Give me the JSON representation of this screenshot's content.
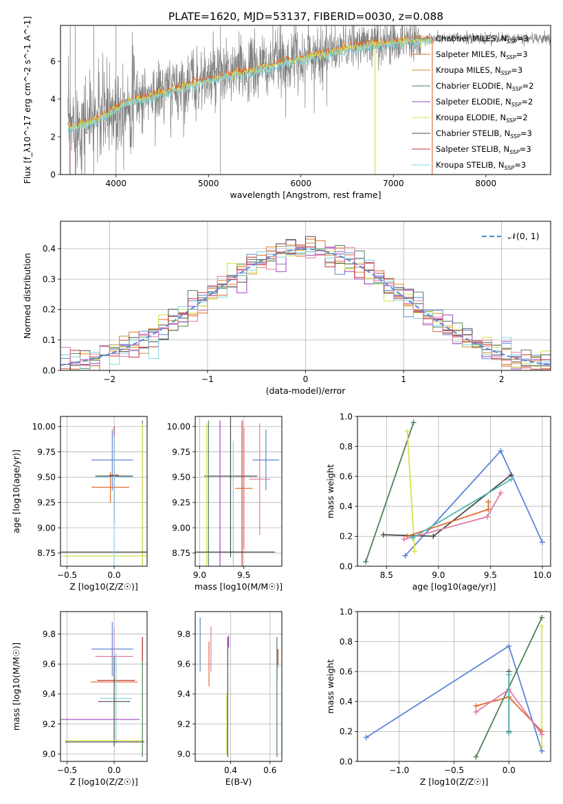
{
  "colors": {
    "chabrier_miles": "#5b84d6",
    "salpeter_miles": "#e06a2b",
    "kroupa_miles": "#d98a2a",
    "chabrier_elodie": "#4f7f54",
    "salpeter_elodie": "#a040c0",
    "kroupa_elodie": "#d8e04a",
    "chabrier_stelib": "#4a4a4a",
    "salpeter_stelib": "#c03030",
    "kroupa_stelib": "#7fd3e0",
    "data": "#808080",
    "normal": "#5b8fd6",
    "pink": "#e07aa8",
    "teal": "#4cb8b0"
  },
  "chart_data": [
    {
      "id": "spectrum",
      "type": "line",
      "title": "PLATE=1620, MJD=53137, FIBERID=0030, z=0.088",
      "xlabel": "wavelength [Angstrom, rest frame]",
      "ylabel": "Flux [f_λ10^-17 erg cm^-2 s^-1 A^-1]",
      "xlim": [
        3400,
        8700
      ],
      "ylim": [
        0,
        7.9
      ],
      "xticks": [
        "4000",
        "5000",
        "6000",
        "7000",
        "8000"
      ],
      "yticks": [
        "0",
        "2",
        "4",
        "6"
      ],
      "grid": false,
      "legend_position": "right",
      "legend": [
        {
          "name": "Chabrier MILES, N_SSP=3",
          "color_key": "chabrier_miles"
        },
        {
          "name": "Salpeter MILES, N_SSP=3",
          "color_key": "salpeter_miles"
        },
        {
          "name": "Kroupa MILES, N_SSP=3",
          "color_key": "kroupa_miles"
        },
        {
          "name": "Chabrier ELODIE, N_SSP=2",
          "color_key": "chabrier_elodie"
        },
        {
          "name": "Salpeter ELODIE, N_SSP=2",
          "color_key": "salpeter_elodie"
        },
        {
          "name": "Kroupa ELODIE, N_SSP=2",
          "color_key": "kroupa_elodie"
        },
        {
          "name": "Chabrier STELIB, N_SSP=3",
          "color_key": "chabrier_stelib"
        },
        {
          "name": "Salpeter STELIB, N_SSP=3",
          "color_key": "salpeter_stelib"
        },
        {
          "name": "Kroupa STELIB, N_SSP=3",
          "color_key": "kroupa_stelib"
        }
      ],
      "continuum": {
        "x": [
          3500,
          3700,
          3900,
          4100,
          4300,
          4500,
          4700,
          4900,
          5100,
          5300,
          5500,
          5700,
          5900,
          6100,
          6300,
          6500,
          6700,
          6900,
          7100,
          7300,
          7420
        ],
        "y": [
          2.6,
          2.8,
          3.3,
          3.9,
          4.1,
          4.4,
          4.7,
          5.0,
          5.2,
          5.45,
          5.6,
          5.85,
          6.1,
          6.35,
          6.5,
          6.8,
          6.95,
          7.0,
          7.15,
          7.2,
          7.2
        ]
      },
      "model_end_x": 7420,
      "data_extent_x": [
        3480,
        8700
      ]
    },
    {
      "id": "residuals",
      "type": "histogram",
      "xlabel": "(data-model)/error",
      "ylabel": "Normed distribution",
      "xlim": [
        -2.5,
        2.5
      ],
      "ylim": [
        0,
        0.49
      ],
      "xticks": [
        "−2",
        "−1",
        "0",
        "1",
        "2"
      ],
      "yticks": [
        "0.0",
        "0.1",
        "0.2",
        "0.3",
        "0.4"
      ],
      "grid": true,
      "legend_position": "top-right",
      "legend": [
        {
          "name": "𝒩(0, 1)",
          "color_key": "normal"
        }
      ],
      "bin_width": 0.1
    },
    {
      "id": "age-vs-z",
      "type": "errorbar",
      "xlabel": "Z [log10(Z/Z☉)]",
      "ylabel": "age [log10(age/yr)]",
      "xlim": [
        -0.57,
        0.35
      ],
      "ylim": [
        8.62,
        10.1
      ],
      "xticks": [
        "−0.5",
        "0.0"
      ],
      "yticks": [
        "8.75",
        "9.00",
        "9.25",
        "9.50",
        "9.75",
        "10.00"
      ],
      "grid": true,
      "series": [
        {
          "color_key": "chabrier_miles",
          "x": -0.02,
          "xerr": 0.22,
          "y": 9.67,
          "yerr": 0.3
        },
        {
          "color_key": "salpeter_miles",
          "x": -0.04,
          "xerr": 0.2,
          "y": 9.4,
          "yerr": 0.15
        },
        {
          "color_key": "chabrier_stelib",
          "x": 0.0,
          "xerr": 0.2,
          "y": 9.51,
          "yerr": 0.35
        },
        {
          "color_key": "salpeter_stelib",
          "x": 0.0,
          "xerr": 0.05,
          "y": 9.52,
          "yerr": 0.48
        },
        {
          "color_key": "kroupa_stelib",
          "x": 0.0,
          "xerr": 0.2,
          "y": 9.5,
          "yerr": 0.4
        },
        {
          "color_key": "chabrier_elodie",
          "x": 0.3,
          "xerr": 0.02,
          "y": 8.76,
          "yerr": 1.3
        },
        {
          "color_key": "kroupa_elodie",
          "x": 0.3,
          "xerr": 0.01,
          "y": 8.73,
          "yerr": 1.3
        },
        {
          "color_key": "chabrier_stelib",
          "x": -0.1,
          "xerr": 0.47,
          "y": 8.76,
          "yerr": 0.0
        },
        {
          "color_key": "kroupa_elodie",
          "x": -0.08,
          "xerr": 0.47,
          "y": 8.72,
          "yerr": 0.0
        },
        {
          "color_key": "kroupa_stelib",
          "x": 0.0,
          "xerr": 0.0,
          "y": 8.76,
          "yerr": 0.6
        }
      ]
    },
    {
      "id": "age-vs-mass",
      "type": "errorbar",
      "xlabel": "mass [log10(M/M☉)]",
      "ylabel": "",
      "xlim": [
        8.95,
        9.93
      ],
      "ylim": [
        8.62,
        10.1
      ],
      "xticks": [
        "9.0",
        "9.5"
      ],
      "yticks": [
        "8.75",
        "9.00",
        "9.25",
        "9.50",
        "9.75",
        "10.00"
      ],
      "grid": true,
      "series": [
        {
          "color_key": "chabrier_miles",
          "x": 9.75,
          "xerr": 0.15,
          "y": 9.67,
          "yerr": 0.3
        },
        {
          "color_key": "pink",
          "x": 9.68,
          "xerr": 0.12,
          "y": 9.48,
          "yerr": 0.55
        },
        {
          "color_key": "salpeter_miles",
          "x": 9.5,
          "xerr": 0.1,
          "y": 9.39,
          "yerr": 0.6
        },
        {
          "color_key": "chabrier_stelib",
          "x": 9.35,
          "xerr": 0.3,
          "y": 9.51,
          "yerr": 0.8
        },
        {
          "color_key": "kroupa_stelib",
          "x": 9.38,
          "xerr": 0.03,
          "y": 8.76,
          "yerr": 1.1
        },
        {
          "color_key": "chabrier_elodie",
          "x": 9.1,
          "xerr": 0.0,
          "y": 8.76,
          "yerr": 1.3
        },
        {
          "color_key": "kroupa_elodie",
          "x": 9.08,
          "xerr": 0.0,
          "y": 8.73,
          "yerr": 1.3
        },
        {
          "color_key": "salpeter_elodie",
          "x": 9.23,
          "xerr": 0.0,
          "y": 8.76,
          "yerr": 1.3
        },
        {
          "color_key": "salpeter_stelib",
          "x": 9.48,
          "xerr": 0.0,
          "y": 8.76,
          "yerr": 1.3
        },
        {
          "color_key": "chabrier_stelib",
          "x": 9.4,
          "xerr": 0.45,
          "y": 8.76,
          "yerr": 0.0
        }
      ]
    },
    {
      "id": "weight-vs-age",
      "type": "line",
      "xlabel": "age [log10(age/yr)]",
      "ylabel": "mass weight",
      "xlim": [
        8.22,
        10.08
      ],
      "ylim": [
        0.0,
        1.0
      ],
      "xticks": [
        "8.5",
        "9.0",
        "9.5",
        "10.0"
      ],
      "yticks": [
        "0.0",
        "0.2",
        "0.4",
        "0.6",
        "0.8",
        "1.0"
      ],
      "grid": true,
      "series": [
        {
          "color_key": "chabrier_miles",
          "x": [
            8.68,
            9.6,
            10.0
          ],
          "y": [
            0.07,
            0.77,
            0.16
          ]
        },
        {
          "color_key": "chabrier_elodie",
          "x": [
            8.3,
            8.76
          ],
          "y": [
            0.03,
            0.96
          ]
        },
        {
          "color_key": "kroupa_elodie",
          "x": [
            8.7,
            8.77
          ],
          "y": [
            0.9,
            0.1
          ]
        },
        {
          "color_key": "chabrier_stelib",
          "x": [
            8.47,
            8.95,
            9.7
          ],
          "y": [
            0.21,
            0.2,
            0.61
          ]
        },
        {
          "color_key": "salpeter_miles",
          "x": [
            8.7,
            9.48,
            9.48
          ],
          "y": [
            0.2,
            0.38,
            0.43
          ]
        },
        {
          "color_key": "pink",
          "x": [
            8.67,
            9.47,
            9.6
          ],
          "y": [
            0.18,
            0.33,
            0.49
          ]
        },
        {
          "color_key": "teal",
          "x": [
            8.75,
            9.7
          ],
          "y": [
            0.19,
            0.58
          ]
        }
      ]
    },
    {
      "id": "mass-vs-z",
      "type": "errorbar",
      "xlabel": "Z [log10(Z/Z☉)]",
      "ylabel": "mass [log10(M/M☉)]",
      "xlim": [
        -0.57,
        0.35
      ],
      "ylim": [
        8.95,
        9.95
      ],
      "xticks": [
        "−0.5",
        "0.0"
      ],
      "yticks": [
        "9.0",
        "9.2",
        "9.4",
        "9.6",
        "9.8"
      ],
      "grid": true,
      "series": [
        {
          "color_key": "chabrier_miles",
          "x": -0.02,
          "xerr": 0.22,
          "y": 9.7,
          "yerr": 0.18
        },
        {
          "color_key": "pink",
          "x": 0.0,
          "xerr": 0.2,
          "y": 9.65,
          "yerr": 0.2
        },
        {
          "color_key": "salpeter_miles",
          "x": 0.0,
          "xerr": 0.25,
          "y": 9.48,
          "yerr": 0.0
        },
        {
          "color_key": "salpeter_stelib",
          "x": 0.02,
          "xerr": 0.2,
          "y": 9.49,
          "yerr": 0.0
        },
        {
          "color_key": "kroupa_stelib",
          "x": 0.02,
          "xerr": 0.17,
          "y": 9.37,
          "yerr": 0.3
        },
        {
          "color_key": "chabrier_stelib",
          "x": 0.0,
          "xerr": 0.17,
          "y": 9.35,
          "yerr": 0.3
        },
        {
          "color_key": "salpeter_elodie",
          "x": -0.15,
          "xerr": 0.42,
          "y": 9.23,
          "yerr": 0.0
        },
        {
          "color_key": "kroupa_elodie",
          "x": -0.1,
          "xerr": 0.42,
          "y": 9.09,
          "yerr": 0.0
        },
        {
          "color_key": "chabrier_stelib",
          "x": -0.1,
          "xerr": 0.42,
          "y": 9.08,
          "yerr": 0.0
        },
        {
          "color_key": "chabrier_elodie",
          "x": 0.3,
          "xerr": 0.0,
          "y": 9.38,
          "yerr": 0.4
        },
        {
          "color_key": "salpeter_stelib",
          "x": 0.3,
          "xerr": 0.0,
          "y": 9.7,
          "yerr": 0.08
        }
      ]
    },
    {
      "id": "mass-vs-ebv",
      "type": "errorbar",
      "xlabel": "E(B-V)",
      "ylabel": "",
      "xlim": [
        0.22,
        0.66
      ],
      "ylim": [
        8.95,
        9.95
      ],
      "xticks": [
        "0.4",
        "0.6"
      ],
      "yticks": [
        "9.0",
        "9.2",
        "9.4",
        "9.6",
        "9.8"
      ],
      "grid": true,
      "series": [
        {
          "color_key": "chabrier_miles",
          "x": 0.245,
          "xerr": 0.0,
          "y": 9.73,
          "yerr": 0.18
        },
        {
          "color_key": "pink",
          "x": 0.3,
          "xerr": 0.0,
          "y": 9.7,
          "yerr": 0.15
        },
        {
          "color_key": "salpeter_miles",
          "x": 0.29,
          "xerr": 0.0,
          "y": 9.6,
          "yerr": 0.15
        },
        {
          "color_key": "salpeter_elodie",
          "x": 0.39,
          "xerr": 0.0,
          "y": 9.75,
          "yerr": 0.04
        },
        {
          "color_key": "chabrier_stelib",
          "x": 0.385,
          "xerr": 0.0,
          "y": 9.38,
          "yerr": 0.4
        },
        {
          "color_key": "kroupa_elodie",
          "x": 0.38,
          "xerr": 0.0,
          "y": 9.2,
          "yerr": 0.2
        },
        {
          "color_key": "chabrier_elodie",
          "x": 0.635,
          "xerr": 0.0,
          "y": 9.38,
          "yerr": 0.4
        },
        {
          "color_key": "salpeter_stelib",
          "x": 0.64,
          "xerr": 0.0,
          "y": 9.64,
          "yerr": 0.06
        },
        {
          "color_key": "kroupa_stelib",
          "x": 0.638,
          "xerr": 0.0,
          "y": 9.55,
          "yerr": 0.05
        }
      ]
    },
    {
      "id": "weight-vs-z",
      "type": "line",
      "xlabel": "Z [log10(Z/Z☉)]",
      "ylabel": "mass weight",
      "xlim": [
        -1.38,
        0.38
      ],
      "ylim": [
        0.0,
        1.0
      ],
      "xticks": [
        "−1.0",
        "−0.5",
        "0.0"
      ],
      "yticks": [
        "0.0",
        "0.2",
        "0.4",
        "0.6",
        "0.8",
        "1.0"
      ],
      "grid": true,
      "series": [
        {
          "color_key": "chabrier_miles",
          "x": [
            -1.3,
            0.0,
            0.3
          ],
          "y": [
            0.16,
            0.77,
            0.07
          ]
        },
        {
          "color_key": "chabrier_elodie",
          "x": [
            -0.3,
            0.3
          ],
          "y": [
            0.03,
            0.96
          ]
        },
        {
          "color_key": "kroupa_elodie",
          "x": [
            0.3,
            0.3
          ],
          "y": [
            0.9,
            0.1
          ]
        },
        {
          "color_key": "salpeter_miles",
          "x": [
            -0.3,
            0.0,
            0.3
          ],
          "y": [
            0.37,
            0.43,
            0.2
          ]
        },
        {
          "color_key": "pink",
          "x": [
            -0.3,
            0.0,
            0.3
          ],
          "y": [
            0.33,
            0.48,
            0.18
          ]
        },
        {
          "color_key": "chabrier_stelib",
          "x": [
            0.0,
            0.0
          ],
          "y": [
            0.6,
            0.2
          ]
        },
        {
          "color_key": "teal",
          "x": [
            0.0,
            0.0
          ],
          "y": [
            0.58,
            0.19
          ]
        }
      ]
    }
  ]
}
